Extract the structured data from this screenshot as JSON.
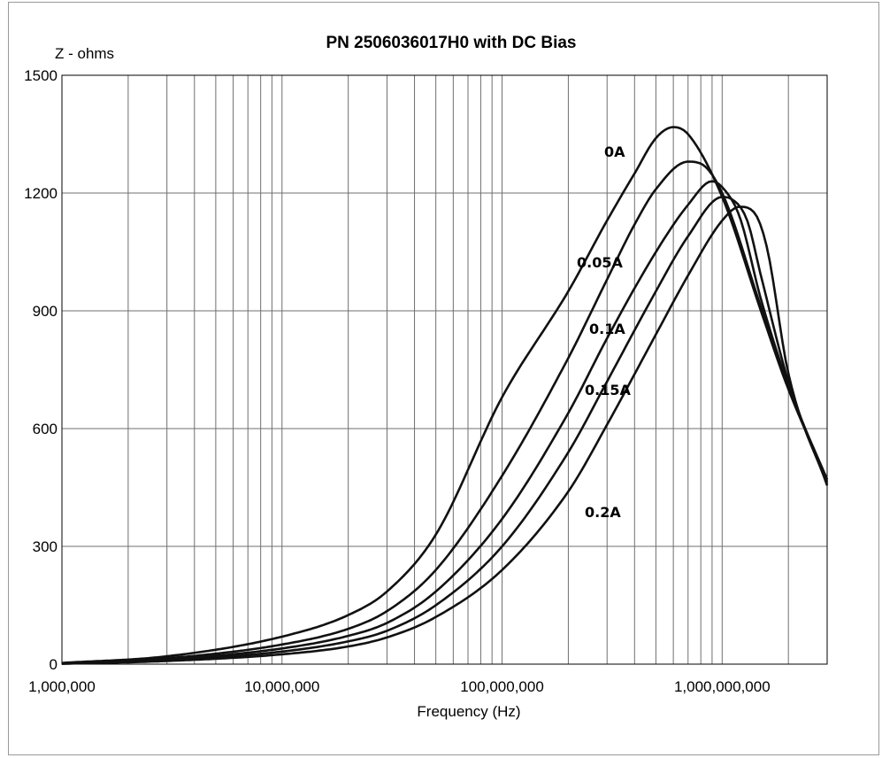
{
  "chart_data": {
    "type": "line",
    "title": "PN 2506036017H0 with DC Bias",
    "ylabel": "Z - ohms",
    "xlabel": "Frequency (Hz)",
    "x_scale": "log",
    "xlim": [
      1000000,
      3000000000
    ],
    "ylim": [
      0,
      1500
    ],
    "grid": true,
    "y_ticks": [
      0,
      300,
      600,
      900,
      1200,
      1500
    ],
    "y_tick_labels": [
      "0",
      "300",
      "600",
      "900",
      "1200",
      "1500"
    ],
    "x_ticks": [
      1000000,
      10000000,
      100000000,
      1000000000
    ],
    "x_tick_labels": [
      "1,000,000",
      "10,000,000",
      "100,000,000",
      "1,000,000,000"
    ],
    "series": [
      {
        "name": "0A",
        "x": [
          1000000,
          3000000,
          10000000,
          20000000,
          30000000,
          50000000,
          100000000,
          200000000,
          300000000,
          400000000,
          500000000,
          600000000,
          700000000,
          1000000000,
          1500000000,
          2000000000,
          3000000000
        ],
        "y": [
          3,
          20,
          70,
          125,
          185,
          330,
          680,
          950,
          1130,
          1250,
          1340,
          1368,
          1350,
          1190,
          900,
          700,
          470
        ]
      },
      {
        "name": "0.05A",
        "x": [
          1000000,
          3000000,
          10000000,
          20000000,
          30000000,
          50000000,
          100000000,
          200000000,
          300000000,
          400000000,
          500000000,
          700000000,
          800000000,
          1000000000,
          1500000000,
          2000000000,
          3000000000
        ],
        "y": [
          2,
          15,
          50,
          90,
          135,
          240,
          480,
          780,
          980,
          1120,
          1210,
          1280,
          1275,
          1200,
          910,
          705,
          470
        ]
      },
      {
        "name": "0.1A",
        "x": [
          1000000,
          3000000,
          10000000,
          20000000,
          30000000,
          50000000,
          100000000,
          200000000,
          300000000,
          500000000,
          700000000,
          900000000,
          1000000000,
          1200000000,
          1500000000,
          2000000000,
          3000000000
        ],
        "y": [
          2,
          12,
          40,
          72,
          105,
          185,
          370,
          640,
          830,
          1050,
          1170,
          1230,
          1215,
          1140,
          930,
          710,
          465
        ]
      },
      {
        "name": "0.15A",
        "x": [
          1000000,
          3000000,
          10000000,
          20000000,
          30000000,
          50000000,
          100000000,
          200000000,
          300000000,
          500000000,
          700000000,
          1000000000,
          1100000000,
          1300000000,
          1500000000,
          2000000000,
          3000000000
        ],
        "y": [
          1,
          10,
          32,
          58,
          85,
          150,
          300,
          540,
          720,
          950,
          1090,
          1190,
          1185,
          1130,
          990,
          720,
          460
        ]
      },
      {
        "name": "0.2A",
        "x": [
          1000000,
          3000000,
          10000000,
          20000000,
          30000000,
          50000000,
          100000000,
          200000000,
          300000000,
          500000000,
          700000000,
          1000000000,
          1200000000,
          1400000000,
          1600000000,
          2000000000,
          3000000000
        ],
        "y": [
          1,
          8,
          25,
          45,
          68,
          120,
          240,
          440,
          610,
          840,
          990,
          1130,
          1165,
          1150,
          1060,
          740,
          455
        ]
      }
    ]
  }
}
